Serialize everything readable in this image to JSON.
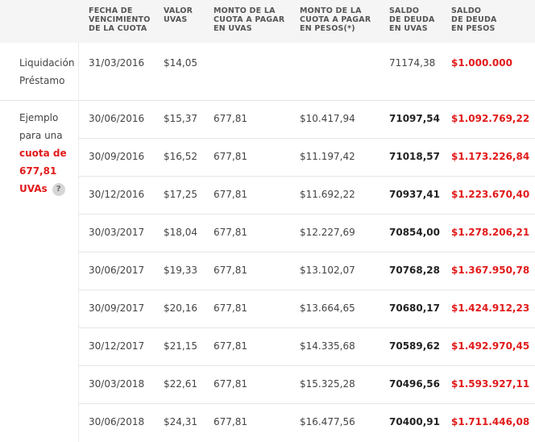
{
  "headers": {
    "fecha": "FECHA DE\nVENCIMIENTO\nDE LA CUOTA",
    "valor": "VALOR\nUVAs",
    "monto_uvas": "MONTO DE LA\nCUOTA A PAGAR\nEN UVAs",
    "monto_pesos": "MONTO DE LA\nCUOTA A PAGAR\nEN PESOS(*)",
    "saldo_uvas": "SALDO\nDE DEUDA\nEN UVAs",
    "saldo_pesos": "SALDO\nDE DEUDA\nEN PESOS"
  },
  "liquidacion": {
    "label_line1": "Liquidación",
    "label_line2": "Préstamo",
    "fecha": "31/03/2016",
    "valor": "$14,05",
    "saldo_uvas": "71174,38",
    "saldo_pesos": "$1.000.000"
  },
  "ejemplo": {
    "line1": "Ejemplo",
    "line2": "para una",
    "line3": "cuota de",
    "line4": "677,81",
    "line5": "UVAs",
    "help": "?"
  },
  "rows": [
    {
      "fecha": "30/06/2016",
      "valor": "$15,37",
      "monto_uvas": "677,81",
      "monto_pesos": "$10.417,94",
      "saldo_uvas": "71097,54",
      "saldo_pesos": "$1.092.769,22"
    },
    {
      "fecha": "30/09/2016",
      "valor": "$16,52",
      "monto_uvas": "677,81",
      "monto_pesos": "$11.197,42",
      "saldo_uvas": "71018,57",
      "saldo_pesos": "$1.173.226,84"
    },
    {
      "fecha": "30/12/2016",
      "valor": "$17,25",
      "monto_uvas": "677,81",
      "monto_pesos": "$11.692,22",
      "saldo_uvas": "70937,41",
      "saldo_pesos": "$1.223.670,40"
    },
    {
      "fecha": "30/03/2017",
      "valor": "$18,04",
      "monto_uvas": "677,81",
      "monto_pesos": "$12.227,69",
      "saldo_uvas": "70854,00",
      "saldo_pesos": "$1.278.206,21"
    },
    {
      "fecha": "30/06/2017",
      "valor": "$19,33",
      "monto_uvas": "677,81",
      "monto_pesos": "$13.102,07",
      "saldo_uvas": "70768,28",
      "saldo_pesos": "$1.367.950,78"
    },
    {
      "fecha": "30/09/2017",
      "valor": "$20,16",
      "monto_uvas": "677,81",
      "monto_pesos": "$13.664,65",
      "saldo_uvas": "70680,17",
      "saldo_pesos": "$1.424.912,23"
    },
    {
      "fecha": "30/12/2017",
      "valor": "$21,15",
      "monto_uvas": "677,81",
      "monto_pesos": "$14.335,68",
      "saldo_uvas": "70589,62",
      "saldo_pesos": "$1.492.970,45"
    },
    {
      "fecha": "30/03/2018",
      "valor": "$22,61",
      "monto_uvas": "677,81",
      "monto_pesos": "$15.325,28",
      "saldo_uvas": "70496,56",
      "saldo_pesos": "$1.593.927,11"
    },
    {
      "fecha": "30/06/2018",
      "valor": "$24,31",
      "monto_uvas": "677,81",
      "monto_pesos": "$16.477,56",
      "saldo_uvas": "70400,91",
      "saldo_pesos": "$1.711.446,08"
    }
  ]
}
